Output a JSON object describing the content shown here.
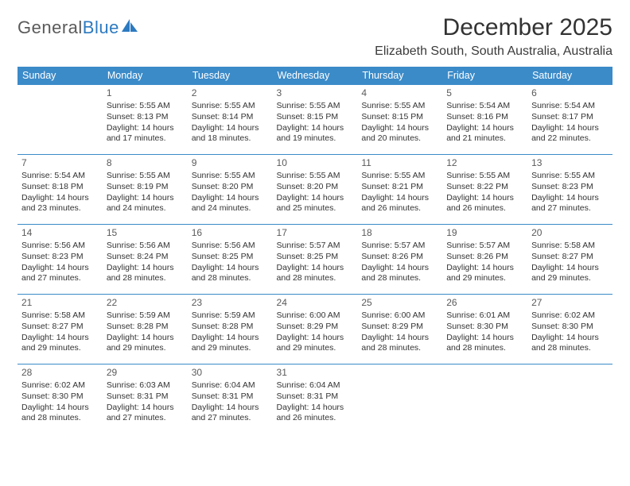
{
  "logo": {
    "part1": "General",
    "part2": "Blue"
  },
  "title": "December 2025",
  "location": "Elizabeth South, South Australia, Australia",
  "colors": {
    "header_bg": "#3b8bc9",
    "header_text": "#ffffff",
    "row_border": "#3b8bc9",
    "logo_gray": "#5a5a5a",
    "logo_blue": "#2c7ac0",
    "body_text": "#333333",
    "background": "#ffffff"
  },
  "weekdays": [
    "Sunday",
    "Monday",
    "Tuesday",
    "Wednesday",
    "Thursday",
    "Friday",
    "Saturday"
  ],
  "grid": [
    [
      null,
      {
        "day": "1",
        "sunrise": "5:55 AM",
        "sunset": "8:13 PM",
        "daylight": "14 hours and 17 minutes."
      },
      {
        "day": "2",
        "sunrise": "5:55 AM",
        "sunset": "8:14 PM",
        "daylight": "14 hours and 18 minutes."
      },
      {
        "day": "3",
        "sunrise": "5:55 AM",
        "sunset": "8:15 PM",
        "daylight": "14 hours and 19 minutes."
      },
      {
        "day": "4",
        "sunrise": "5:55 AM",
        "sunset": "8:15 PM",
        "daylight": "14 hours and 20 minutes."
      },
      {
        "day": "5",
        "sunrise": "5:54 AM",
        "sunset": "8:16 PM",
        "daylight": "14 hours and 21 minutes."
      },
      {
        "day": "6",
        "sunrise": "5:54 AM",
        "sunset": "8:17 PM",
        "daylight": "14 hours and 22 minutes."
      }
    ],
    [
      {
        "day": "7",
        "sunrise": "5:54 AM",
        "sunset": "8:18 PM",
        "daylight": "14 hours and 23 minutes."
      },
      {
        "day": "8",
        "sunrise": "5:55 AM",
        "sunset": "8:19 PM",
        "daylight": "14 hours and 24 minutes."
      },
      {
        "day": "9",
        "sunrise": "5:55 AM",
        "sunset": "8:20 PM",
        "daylight": "14 hours and 24 minutes."
      },
      {
        "day": "10",
        "sunrise": "5:55 AM",
        "sunset": "8:20 PM",
        "daylight": "14 hours and 25 minutes."
      },
      {
        "day": "11",
        "sunrise": "5:55 AM",
        "sunset": "8:21 PM",
        "daylight": "14 hours and 26 minutes."
      },
      {
        "day": "12",
        "sunrise": "5:55 AM",
        "sunset": "8:22 PM",
        "daylight": "14 hours and 26 minutes."
      },
      {
        "day": "13",
        "sunrise": "5:55 AM",
        "sunset": "8:23 PM",
        "daylight": "14 hours and 27 minutes."
      }
    ],
    [
      {
        "day": "14",
        "sunrise": "5:56 AM",
        "sunset": "8:23 PM",
        "daylight": "14 hours and 27 minutes."
      },
      {
        "day": "15",
        "sunrise": "5:56 AM",
        "sunset": "8:24 PM",
        "daylight": "14 hours and 28 minutes."
      },
      {
        "day": "16",
        "sunrise": "5:56 AM",
        "sunset": "8:25 PM",
        "daylight": "14 hours and 28 minutes."
      },
      {
        "day": "17",
        "sunrise": "5:57 AM",
        "sunset": "8:25 PM",
        "daylight": "14 hours and 28 minutes."
      },
      {
        "day": "18",
        "sunrise": "5:57 AM",
        "sunset": "8:26 PM",
        "daylight": "14 hours and 28 minutes."
      },
      {
        "day": "19",
        "sunrise": "5:57 AM",
        "sunset": "8:26 PM",
        "daylight": "14 hours and 29 minutes."
      },
      {
        "day": "20",
        "sunrise": "5:58 AM",
        "sunset": "8:27 PM",
        "daylight": "14 hours and 29 minutes."
      }
    ],
    [
      {
        "day": "21",
        "sunrise": "5:58 AM",
        "sunset": "8:27 PM",
        "daylight": "14 hours and 29 minutes."
      },
      {
        "day": "22",
        "sunrise": "5:59 AM",
        "sunset": "8:28 PM",
        "daylight": "14 hours and 29 minutes."
      },
      {
        "day": "23",
        "sunrise": "5:59 AM",
        "sunset": "8:28 PM",
        "daylight": "14 hours and 29 minutes."
      },
      {
        "day": "24",
        "sunrise": "6:00 AM",
        "sunset": "8:29 PM",
        "daylight": "14 hours and 29 minutes."
      },
      {
        "day": "25",
        "sunrise": "6:00 AM",
        "sunset": "8:29 PM",
        "daylight": "14 hours and 28 minutes."
      },
      {
        "day": "26",
        "sunrise": "6:01 AM",
        "sunset": "8:30 PM",
        "daylight": "14 hours and 28 minutes."
      },
      {
        "day": "27",
        "sunrise": "6:02 AM",
        "sunset": "8:30 PM",
        "daylight": "14 hours and 28 minutes."
      }
    ],
    [
      {
        "day": "28",
        "sunrise": "6:02 AM",
        "sunset": "8:30 PM",
        "daylight": "14 hours and 28 minutes."
      },
      {
        "day": "29",
        "sunrise": "6:03 AM",
        "sunset": "8:31 PM",
        "daylight": "14 hours and 27 minutes."
      },
      {
        "day": "30",
        "sunrise": "6:04 AM",
        "sunset": "8:31 PM",
        "daylight": "14 hours and 27 minutes."
      },
      {
        "day": "31",
        "sunrise": "6:04 AM",
        "sunset": "8:31 PM",
        "daylight": "14 hours and 26 minutes."
      },
      null,
      null,
      null
    ]
  ],
  "labels": {
    "sunrise": "Sunrise: ",
    "sunset": "Sunset: ",
    "daylight": "Daylight: "
  }
}
